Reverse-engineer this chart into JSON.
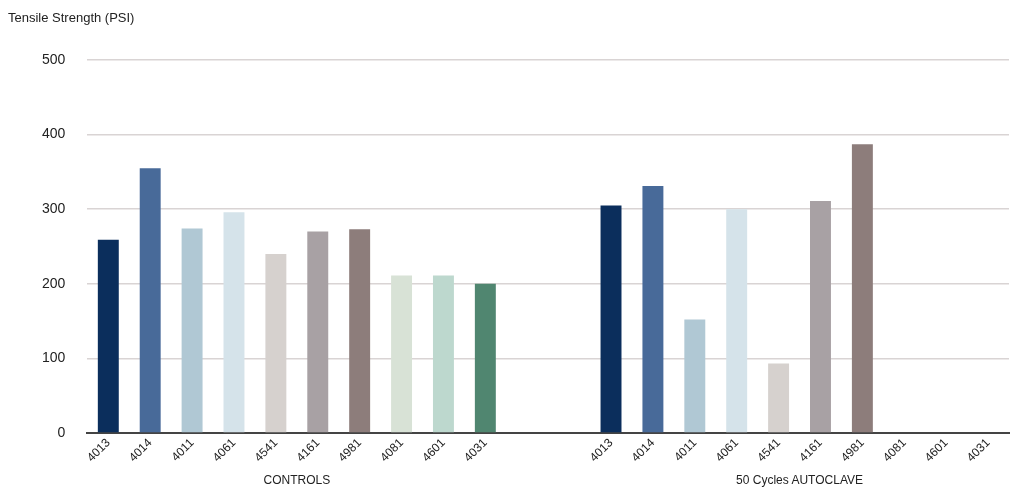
{
  "chart_data": {
    "type": "bar",
    "ylabel": "Tensile Strength (PSI)",
    "categories": [
      "4013",
      "4014",
      "4011",
      "4061",
      "4541",
      "4161",
      "4981",
      "4081",
      "4601",
      "4031",
      null,
      null,
      "4013",
      "4014",
      "4011",
      "4061",
      "4541",
      "4161",
      "4981",
      "4081",
      "4601",
      "4031"
    ],
    "values": [
      259,
      355,
      274,
      296,
      240,
      270,
      273,
      211,
      211,
      200,
      null,
      null,
      305,
      331,
      152,
      300,
      93,
      311,
      387,
      null,
      null,
      null
    ],
    "colors": [
      "#0b2e5c",
      "#486a99",
      "#b0c8d4",
      "#d5e3ea",
      "#d6d1ce",
      "#a8a1a4",
      "#8d7d7b",
      "#d8e2d6",
      "#bdd8ce",
      "#508670",
      null,
      null,
      "#0b2e5c",
      "#486a99",
      "#b0c8d4",
      "#d5e3ea",
      "#d6d1ce",
      "#a8a1a4",
      "#8d7d7b",
      "#d8e2d6",
      "#bdd8ce",
      "#508670"
    ],
    "ylim": [
      0,
      500
    ],
    "yticks": [
      0,
      100,
      200,
      300,
      400,
      500
    ],
    "grid": "y",
    "legend": false,
    "annotations": [
      "CONTROLS",
      "50 Cycles AUTOCLAVE"
    ]
  }
}
